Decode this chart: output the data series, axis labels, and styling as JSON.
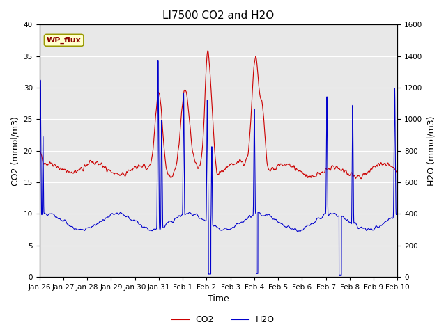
{
  "title": "LI7500 CO2 and H2O",
  "xlabel": "Time",
  "ylabel_left": "CO2 (mmol/m3)",
  "ylabel_right": "H2O (mmol/m3)",
  "xlim": [
    0,
    15
  ],
  "ylim_left": [
    0,
    40
  ],
  "ylim_right": [
    0,
    1600
  ],
  "xtick_labels": [
    "Jan 26",
    "Jan 27",
    "Jan 28",
    "Jan 29",
    "Jan 30",
    "Jan 31",
    "Feb 1",
    "Feb 2",
    "Feb 3",
    "Feb 4",
    "Feb 5",
    "Feb 6",
    "Feb 7",
    "Feb 8",
    "Feb 9",
    "Feb 10"
  ],
  "xtick_positions": [
    0,
    1,
    2,
    3,
    4,
    5,
    6,
    7,
    8,
    9,
    10,
    11,
    12,
    13,
    14,
    15
  ],
  "co2_color": "#cc0000",
  "h2o_color": "#0000cc",
  "legend_label_co2": "CO2",
  "legend_label_h2o": "H2O",
  "annotation_text": "WP_flux",
  "bg_color": "#e8e8e8",
  "title_fontsize": 11,
  "axis_fontsize": 9,
  "tick_fontsize": 7.5,
  "legend_fontsize": 9
}
